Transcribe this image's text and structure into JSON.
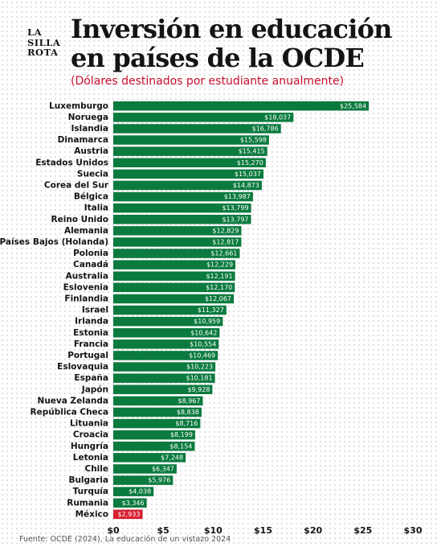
{
  "logo": {
    "line1": "LA",
    "line2": "SILLA",
    "line3": "ROTA"
  },
  "header": {
    "title": "Inversión en educación en países de la OCDE",
    "subtitle": "(Dólares destinados por estudiante anualmente)"
  },
  "source": "Fuente: OCDE (2024), La educación de un vistazo 2024",
  "colors": {
    "bar": "#0b7a3e",
    "highlight": "#d71f2f",
    "label_text": "#ffffff"
  },
  "chart_data": {
    "type": "bar",
    "orientation": "horizontal",
    "categories": [
      "Luxemburgo",
      "Noruega",
      "Islandia",
      "Dinamarca",
      "Austria",
      "Estados Unidos",
      "Suecia",
      "Corea del Sur",
      "Bélgica",
      "Italia",
      "Reino Unido",
      "Alemania",
      "Países Bajos (Holanda)",
      "Polonia",
      "Canadá",
      "Australia",
      "Eslovenia",
      "Finlandia",
      "Israel",
      "Irlanda",
      "Estonia",
      "Francia",
      "Portugal",
      "Eslovaquia",
      "España",
      "Japón",
      "Nueva Zelanda",
      "República Checa",
      "Lituania",
      "Croacia",
      "Hungría",
      "Letonia",
      "Chile",
      "Bulgaria",
      "Turquía",
      "Rumania",
      "México"
    ],
    "values": [
      25584,
      18037,
      16786,
      15598,
      15415,
      15270,
      15037,
      14873,
      13987,
      13799,
      13797,
      12829,
      12817,
      12661,
      12229,
      12191,
      12170,
      12067,
      11327,
      10959,
      10642,
      10554,
      10469,
      10223,
      10181,
      9928,
      8967,
      8838,
      8716,
      8199,
      8154,
      7248,
      6347,
      5976,
      4038,
      3346,
      2933
    ],
    "value_labels": [
      "$25,584",
      "$18,037",
      "$16,786",
      "$15,598",
      "$15,415",
      "$15,270",
      "$15,037",
      "$14,873",
      "$13,987",
      "$13,799",
      "$13,797",
      "$12,829",
      "$12,817",
      "$12,661",
      "$12,229",
      "$12,191",
      "$12,170",
      "$12,067",
      "$11,327",
      "$10,959",
      "$10,642",
      "$10,554",
      "$10,469",
      "$10,223",
      "$10,181",
      "$9,928",
      "$8,967",
      "$8,838",
      "$8,716",
      "$8,199",
      "$8,154",
      "$7,248",
      "$6,347",
      "$5,976",
      "$4,038",
      "$3,346",
      "$2,933"
    ],
    "highlight": "México",
    "xlim": [
      0,
      30000
    ],
    "xticks": [
      0,
      5000,
      10000,
      15000,
      20000,
      25000,
      30000
    ],
    "xtick_labels": [
      "$0",
      "$5",
      "$10",
      "$15",
      "$20",
      "$25",
      "$30"
    ],
    "xlabel": "",
    "ylabel": "",
    "grid": false,
    "legend": "none"
  }
}
